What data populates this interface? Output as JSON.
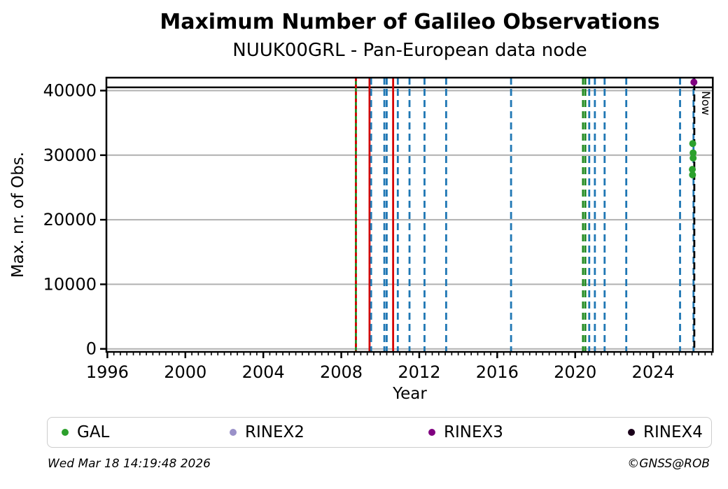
{
  "header": {
    "title": "Maximum Number of Galileo Observations",
    "subtitle": "NUUK00GRL - Pan-European data node"
  },
  "chart_data": {
    "type": "scatter",
    "title": "Maximum Number of Galileo Observations",
    "subtitle": "NUUK00GRL - Pan-European data node",
    "xlabel": "Year",
    "ylabel": "Max. nr. of Obs.",
    "xlim": [
      1995.95,
      2027.06
    ],
    "ylim": [
      -465,
      42005
    ],
    "x_ticks": [
      1996,
      2000,
      2004,
      2008,
      2012,
      2016,
      2020,
      2024
    ],
    "x_minor_step_years": 0.33333,
    "y_ticks": [
      0,
      10000,
      20000,
      30000,
      40000
    ],
    "grid": "horizontal",
    "grid_color": "#b0b0b0",
    "hline": {
      "value": 40500,
      "color": "#000000"
    },
    "event_lines": [
      {
        "year": 2008.75,
        "color": "green",
        "style": "solid"
      },
      {
        "year": 2008.75,
        "color": "red",
        "style": "dashed-short"
      },
      {
        "year": 2009.45,
        "color": "red",
        "style": "solid"
      },
      {
        "year": 2009.53,
        "color": "blue",
        "style": "dashed"
      },
      {
        "year": 2010.21,
        "color": "blue",
        "style": "dashed"
      },
      {
        "year": 2010.33,
        "color": "blue",
        "style": "dashed"
      },
      {
        "year": 2010.66,
        "color": "red",
        "style": "solid"
      },
      {
        "year": 2010.9,
        "color": "blue",
        "style": "dashed"
      },
      {
        "year": 2011.5,
        "color": "blue",
        "style": "dashed"
      },
      {
        "year": 2012.27,
        "color": "blue",
        "style": "dashed"
      },
      {
        "year": 2013.38,
        "color": "blue",
        "style": "dashed"
      },
      {
        "year": 2016.71,
        "color": "blue",
        "style": "dashed"
      },
      {
        "year": 2020.4,
        "color": "green",
        "style": "dashed"
      },
      {
        "year": 2020.52,
        "color": "green",
        "style": "dashed"
      },
      {
        "year": 2020.72,
        "color": "blue",
        "style": "dashed"
      },
      {
        "year": 2021.01,
        "color": "blue",
        "style": "dashed"
      },
      {
        "year": 2021.51,
        "color": "blue",
        "style": "dashed"
      },
      {
        "year": 2022.62,
        "color": "blue",
        "style": "dashed"
      },
      {
        "year": 2025.38,
        "color": "blue",
        "style": "dashed"
      },
      {
        "year": 2026.07,
        "color": "blue",
        "style": "dashed"
      },
      {
        "year": 2026.11,
        "color": "black",
        "style": "dashed",
        "label": "Now"
      }
    ],
    "now_label": "Now",
    "series": [
      {
        "name": "GAL",
        "color": "#2ca02c",
        "points": [
          [
            2026.03,
            31800
          ],
          [
            2026.05,
            30350
          ],
          [
            2026.05,
            29550
          ],
          [
            2026.01,
            27800
          ],
          [
            2026.02,
            26950
          ]
        ]
      },
      {
        "name": "RINEX2",
        "color": "#9a91c9",
        "points": []
      },
      {
        "name": "RINEX3",
        "color": "#800080",
        "points": [
          [
            2026.09,
            41300
          ]
        ]
      },
      {
        "name": "RINEX4",
        "color": "#1a001a",
        "points": []
      }
    ],
    "line_colors": {
      "blue": "#1f77b4",
      "red": "#d60000",
      "green": "#228b22",
      "black": "#000000"
    },
    "legend_position": "bottom"
  },
  "legend": {
    "items": [
      {
        "label": "GAL",
        "color": "#2ca02c"
      },
      {
        "label": "RINEX2",
        "color": "#9a91c9"
      },
      {
        "label": "RINEX3",
        "color": "#800080"
      },
      {
        "label": "RINEX4",
        "color": "#1a001a"
      }
    ]
  },
  "footer": {
    "timestamp": "Wed Mar 18 14:19:48 2026",
    "credit": "©GNSS@ROB"
  }
}
